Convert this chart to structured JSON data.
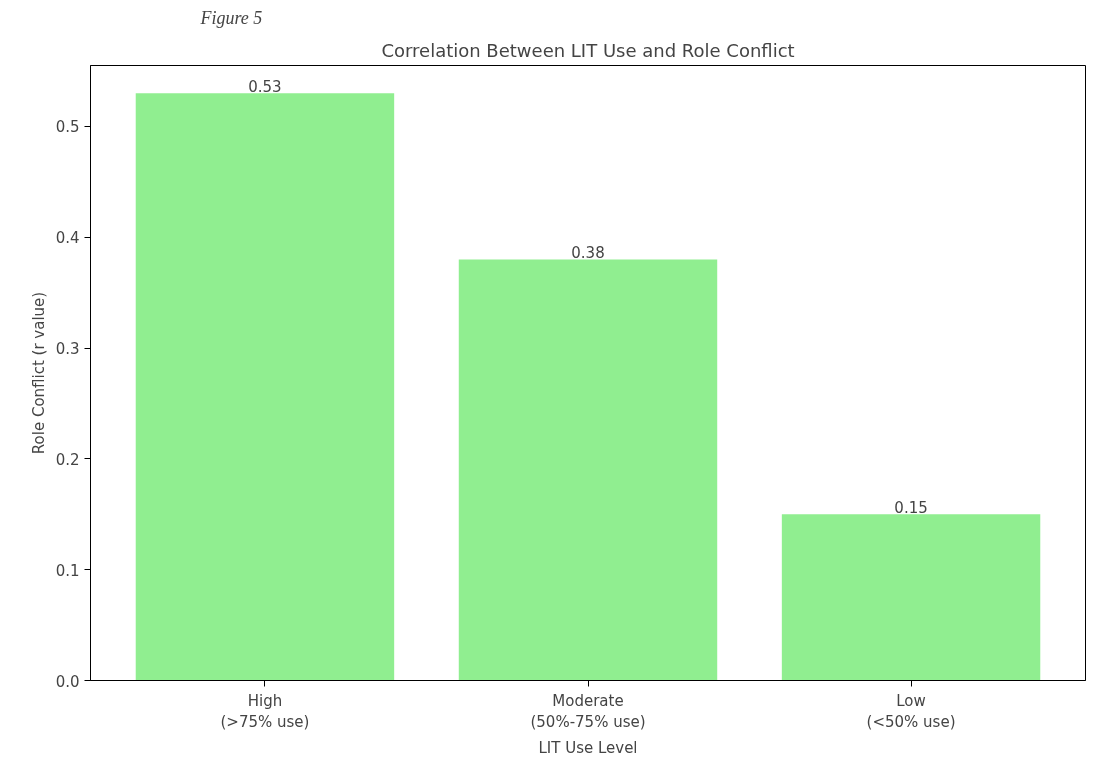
{
  "chart_data": {
    "type": "bar",
    "title": "Correlation Between LIT Use and Role Conflict",
    "annotations": [
      "Figure 5"
    ],
    "xlabel": "LIT Use Level",
    "ylabel": "Role Conflict (r value)",
    "categories": [
      "High\n(>75% use)",
      "Moderate\n(50%-75% use)",
      "Low\n(<50% use)"
    ],
    "values": [
      0.53,
      0.38,
      0.15
    ],
    "color": "#90ee90",
    "ylim": [
      0,
      0.555
    ],
    "yticks": [
      {
        "value": 0,
        "label": "0.0"
      },
      0.1,
      0.2,
      0.3,
      0.4,
      0.5
    ],
    "data_labels": true,
    "grid": false
  }
}
